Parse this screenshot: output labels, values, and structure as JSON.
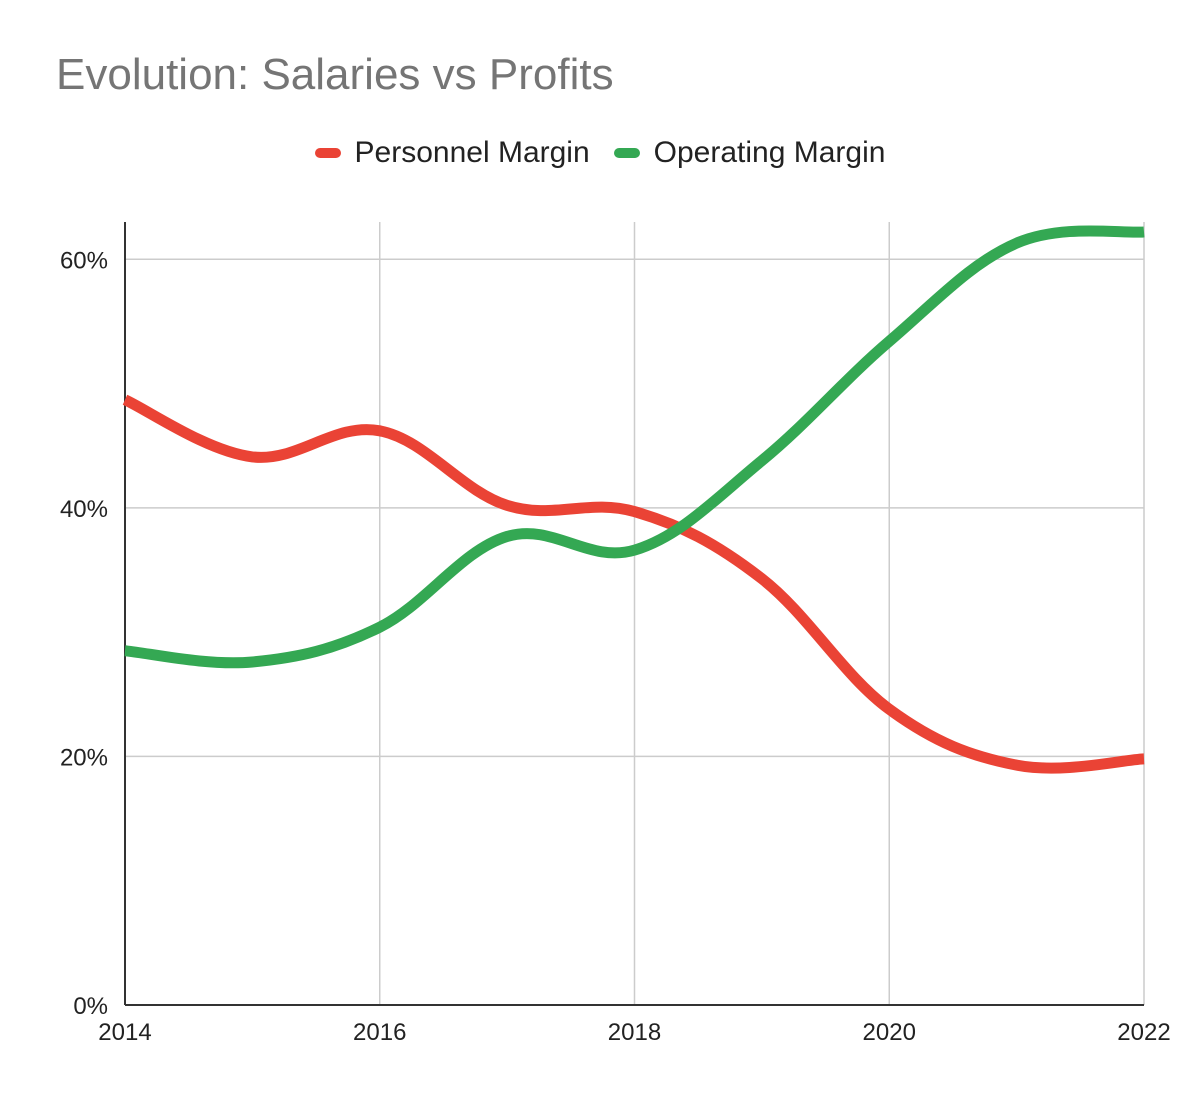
{
  "chart_data": {
    "type": "line",
    "title": "Evolution: Salaries vs Profits",
    "xlabel": "",
    "ylabel": "",
    "x": [
      2014,
      2015,
      2016,
      2017,
      2018,
      2019,
      2020,
      2021,
      2022
    ],
    "x_ticks": [
      "2014",
      "2016",
      "2018",
      "2020",
      "2022"
    ],
    "x_tick_values": [
      2014,
      2016,
      2018,
      2020,
      2022
    ],
    "y_ticks": [
      "0%",
      "20%",
      "40%",
      "60%"
    ],
    "y_tick_values": [
      0,
      20,
      40,
      60
    ],
    "xlim": [
      2014,
      2022
    ],
    "ylim": [
      0,
      63
    ],
    "grid": true,
    "legend_position": "top",
    "curve": "smooth",
    "series": [
      {
        "name": "Personnel Margin",
        "color": "#ea4335",
        "values": [
          48.7,
          44.1,
          46.2,
          40.2,
          39.7,
          34.3,
          23.8,
          19.3,
          19.8
        ]
      },
      {
        "name": "Operating Margin",
        "color": "#34a853",
        "values": [
          28.5,
          27.6,
          30.4,
          37.7,
          36.6,
          43.8,
          53.4,
          61.3,
          62.2
        ]
      }
    ]
  }
}
